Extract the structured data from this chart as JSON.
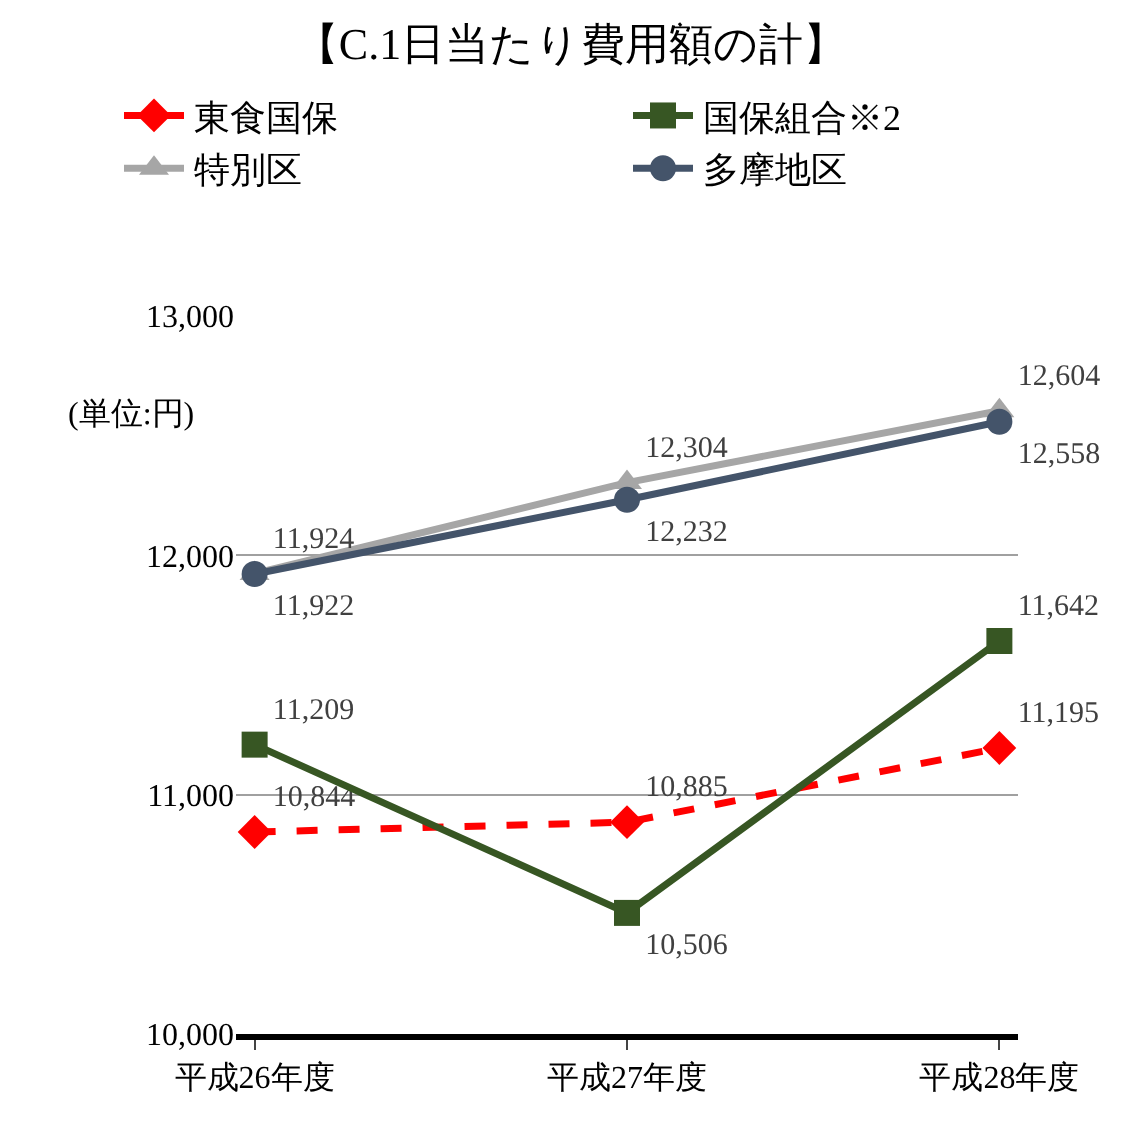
{
  "chart_data": {
    "type": "line",
    "title": "【C.1日当たり費用額の計】",
    "categories": [
      "平成26年度",
      "平成27年度",
      "平成28年度"
    ],
    "series": [
      {
        "name": "東食国保",
        "color": "#ff0000",
        "values": [
          10844,
          10885,
          11195
        ],
        "marker": "diamond",
        "line_style": "dashed",
        "value_labels": [
          "10,844",
          "10,885",
          "11,195"
        ]
      },
      {
        "name": "国保組合※2",
        "color": "#375623",
        "values": [
          11209,
          10506,
          11642
        ],
        "marker": "square",
        "line_style": "solid",
        "value_labels": [
          "11,209",
          "10,506",
          "11,642"
        ]
      },
      {
        "name": "特別区",
        "color": "#a6a6a6",
        "values": [
          11924,
          12304,
          12604
        ],
        "marker": "triangle",
        "line_style": "solid",
        "value_labels": [
          "11,924",
          "12,304",
          "12,604"
        ]
      },
      {
        "name": "多摩地区",
        "color": "#44546a",
        "values": [
          11922,
          12232,
          12558
        ],
        "marker": "circle",
        "line_style": "solid",
        "value_labels": [
          "11,922",
          "12,232",
          "12,558"
        ]
      }
    ],
    "ylim": [
      10000,
      13000
    ],
    "yticks": [
      {
        "value": 10000,
        "label": "10,000"
      },
      {
        "value": 11000,
        "label": "11,000"
      },
      {
        "value": 12000,
        "label": "12,000"
      },
      {
        "value": 13000,
        "label": "13,000"
      }
    ],
    "grid": "y",
    "legend": "top",
    "annotations": [
      "(単位:円)"
    ]
  }
}
